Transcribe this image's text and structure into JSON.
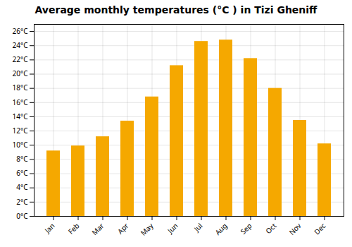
{
  "chart_data": {
    "type": "bar",
    "title": "Average monthly temperatures (°C ) in Tizi Gheniff",
    "categories": [
      "Jan",
      "Feb",
      "Mar",
      "Apr",
      "May",
      "Jun",
      "Jul",
      "Aug",
      "Sep",
      "Oct",
      "Nov",
      "Dec"
    ],
    "values": [
      9.2,
      9.9,
      11.2,
      13.4,
      16.8,
      21.2,
      24.6,
      24.8,
      22.2,
      18.0,
      13.5,
      10.2
    ],
    "color": "#F5A800",
    "ylim": [
      0,
      27
    ],
    "yticks": [
      {
        "value": 0,
        "label": "0°C"
      },
      {
        "value": 2,
        "label": "2°C"
      },
      {
        "value": 4,
        "label": "4°C"
      },
      {
        "value": 6,
        "label": "6°C"
      },
      {
        "value": 8,
        "label": "8°C"
      },
      {
        "value": 10,
        "label": "10°C"
      },
      {
        "value": 12,
        "label": "12°C"
      },
      {
        "value": 14,
        "label": "14°C"
      },
      {
        "value": 16,
        "label": "16°C"
      },
      {
        "value": 18,
        "label": "18°C"
      },
      {
        "value": 20,
        "label": "20°C"
      },
      {
        "value": 22,
        "label": "22°C"
      },
      {
        "value": 24,
        "label": "24°C"
      },
      {
        "value": 26,
        "label": "26°C"
      }
    ],
    "grid": true
  }
}
